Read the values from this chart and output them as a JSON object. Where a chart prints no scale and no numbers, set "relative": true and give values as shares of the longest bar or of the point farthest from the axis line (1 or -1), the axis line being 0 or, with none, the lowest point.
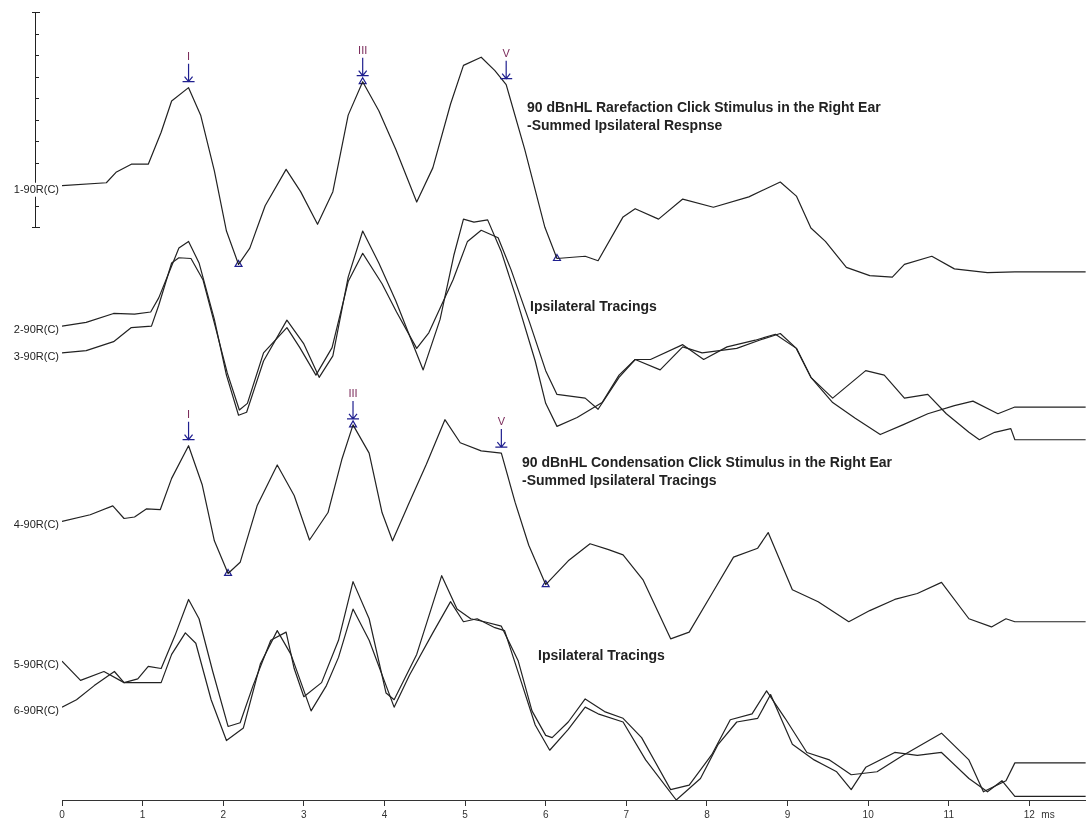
{
  "chart_data": {
    "type": "line",
    "relative": true,
    "xlim": [
      0,
      12.7
    ],
    "xticks": [
      0,
      1,
      2,
      3,
      4,
      5,
      6,
      7,
      8,
      9,
      10,
      11,
      12
    ],
    "xlabel": "ms",
    "tick_labels": "x",
    "grid": false,
    "legend": "left",
    "marker": "none",
    "line_style": "solid",
    "series": [
      {
        "name": "1-90R(C)",
        "color": "#222222",
        "x": [
          0,
          0.55,
          0.67,
          0.86,
          1.07,
          1.23,
          1.36,
          1.57,
          1.72,
          1.89,
          2.04,
          2.19,
          2.33,
          2.52,
          2.78,
          2.96,
          3.17,
          3.36,
          3.55,
          3.73,
          3.93,
          4.14,
          4.4,
          4.6,
          4.82,
          4.98,
          5.2,
          5.37,
          5.51,
          5.74,
          5.99,
          6.14,
          6.49,
          6.65,
          6.96,
          7.11,
          7.4,
          7.7,
          8.08,
          8.52,
          8.91,
          9.11,
          9.29,
          9.47,
          9.73,
          10.02,
          10.3,
          10.45,
          10.79,
          11.07,
          11.48,
          11.82,
          12.7
        ],
        "values": [
          0.827,
          0.831,
          0.845,
          0.856,
          0.856,
          0.899,
          0.941,
          0.959,
          0.922,
          0.847,
          0.766,
          0.721,
          0.743,
          0.8,
          0.849,
          0.819,
          0.775,
          0.819,
          0.922,
          0.967,
          0.928,
          0.876,
          0.805,
          0.851,
          0.937,
          0.989,
          1,
          0.982,
          0.963,
          0.876,
          0.771,
          0.729,
          0.732,
          0.726,
          0.785,
          0.796,
          0.782,
          0.809,
          0.798,
          0.812,
          0.832,
          0.813,
          0.77,
          0.752,
          0.717,
          0.706,
          0.704,
          0.721,
          0.732,
          0.715,
          0.71,
          0.711,
          0.711
        ]
      },
      {
        "name": "2-90R(C)",
        "color": "#222222",
        "x": [
          0,
          0.3,
          0.64,
          0.9,
          1.1,
          1.2,
          1.36,
          1.45,
          1.57,
          1.7,
          1.89,
          2.04,
          2.19,
          2.29,
          2.5,
          2.79,
          3,
          3.19,
          3.36,
          3.55,
          3.73,
          3.93,
          4.14,
          4.48,
          4.69,
          4.86,
          4.98,
          5.11,
          5.28,
          5.45,
          5.62,
          5.87,
          6,
          6.14,
          6.39,
          6.7,
          6.91,
          7.11,
          7.42,
          7.7,
          7.94,
          8.37,
          8.65,
          8.91,
          9.11,
          9.29,
          9.56,
          9.84,
          10.15,
          10.43,
          10.74,
          11.07,
          11.3,
          11.61,
          11.82,
          12.7
        ],
        "values": [
          0.638,
          0.643,
          0.655,
          0.654,
          0.657,
          0.676,
          0.719,
          0.743,
          0.752,
          0.723,
          0.647,
          0.572,
          0.518,
          0.522,
          0.591,
          0.646,
          0.614,
          0.569,
          0.598,
          0.704,
          0.766,
          0.723,
          0.672,
          0.579,
          0.647,
          0.733,
          0.782,
          0.778,
          0.781,
          0.738,
          0.681,
          0.591,
          0.534,
          0.503,
          0.515,
          0.535,
          0.572,
          0.593,
          0.579,
          0.61,
          0.602,
          0.608,
          0.619,
          0.628,
          0.608,
          0.569,
          0.535,
          0.514,
          0.492,
          0.505,
          0.52,
          0.531,
          0.537,
          0.52,
          0.529,
          0.529
        ]
      },
      {
        "name": "3-90R(C)",
        "color": "#222222",
        "x": [
          0,
          0.3,
          0.64,
          0.86,
          1.11,
          1.2,
          1.36,
          1.45,
          1.6,
          1.75,
          1.9,
          2.05,
          2.2,
          2.3,
          2.5,
          2.79,
          2.95,
          3.15,
          3.35,
          3.55,
          3.73,
          3.97,
          4.15,
          4.4,
          4.55,
          4.85,
          5.03,
          5.2,
          5.41,
          5.57,
          5.8,
          6,
          6.14,
          6.49,
          6.65,
          6.91,
          7.11,
          7.3,
          7.7,
          7.96,
          8.25,
          8.6,
          8.85,
          9.11,
          9.29,
          9.56,
          9.97,
          10.2,
          10.45,
          10.74,
          10.97,
          11.25,
          11.38,
          11.57,
          11.77,
          11.82,
          12.7
        ],
        "values": [
          0.602,
          0.605,
          0.617,
          0.636,
          0.638,
          0.666,
          0.723,
          0.73,
          0.729,
          0.7,
          0.638,
          0.575,
          0.525,
          0.534,
          0.602,
          0.636,
          0.609,
          0.572,
          0.609,
          0.698,
          0.736,
          0.695,
          0.657,
          0.608,
          0.629,
          0.7,
          0.752,
          0.767,
          0.757,
          0.714,
          0.643,
          0.578,
          0.546,
          0.541,
          0.526,
          0.569,
          0.593,
          0.593,
          0.613,
          0.593,
          0.61,
          0.619,
          0.627,
          0.608,
          0.569,
          0.541,
          0.578,
          0.572,
          0.541,
          0.546,
          0.52,
          0.495,
          0.485,
          0.495,
          0.5,
          0.485,
          0.485
        ]
      },
      {
        "name": "4-90R(C)",
        "color": "#222222",
        "x": [
          0,
          0.35,
          0.63,
          0.77,
          0.9,
          1.05,
          1.22,
          1.36,
          1.57,
          1.74,
          1.89,
          2.06,
          2.21,
          2.42,
          2.67,
          2.88,
          3.07,
          3.3,
          3.47,
          3.61,
          3.81,
          3.97,
          4.1,
          4.29,
          4.52,
          4.75,
          4.94,
          5.2,
          5.45,
          5.62,
          5.79,
          6,
          6.28,
          6.55,
          6.78,
          6.96,
          7.21,
          7.55,
          7.78,
          8.08,
          8.33,
          8.63,
          8.76,
          9.06,
          9.38,
          9.76,
          10.02,
          10.33,
          10.61,
          10.91,
          11.25,
          11.53,
          11.71,
          11.82,
          12.7
        ],
        "values": [
          0.375,
          0.384,
          0.396,
          0.379,
          0.381,
          0.392,
          0.391,
          0.433,
          0.477,
          0.424,
          0.349,
          0.305,
          0.32,
          0.396,
          0.451,
          0.41,
          0.35,
          0.387,
          0.458,
          0.505,
          0.467,
          0.387,
          0.349,
          0.396,
          0.452,
          0.512,
          0.481,
          0.47,
          0.467,
          0.401,
          0.343,
          0.29,
          0.322,
          0.345,
          0.337,
          0.33,
          0.296,
          0.217,
          0.226,
          0.281,
          0.327,
          0.339,
          0.36,
          0.283,
          0.267,
          0.24,
          0.255,
          0.27,
          0.278,
          0.293,
          0.244,
          0.233,
          0.244,
          0.24,
          0.24
        ]
      },
      {
        "name": "5-90R(C)",
        "color": "#222222",
        "x": [
          0,
          0.23,
          0.52,
          0.77,
          0.94,
          1.07,
          1.23,
          1.4,
          1.57,
          1.7,
          1.87,
          2.06,
          2.21,
          2.37,
          2.59,
          2.78,
          2.88,
          3,
          3.22,
          3.43,
          3.61,
          3.81,
          4.02,
          4.12,
          4.4,
          4.71,
          4.9,
          5.07,
          5.24,
          5.45,
          5.66,
          5.83,
          6,
          6.08,
          6.28,
          6.49,
          6.73,
          6.96,
          7.19,
          7.55,
          7.78,
          8.06,
          8.29,
          8.56,
          8.74,
          8.97,
          9.24,
          9.52,
          9.79,
          10.11,
          10.43,
          10.91,
          11.25,
          11.43,
          11.71,
          11.82,
          12.7
        ],
        "values": [
          0.187,
          0.161,
          0.173,
          0.158,
          0.163,
          0.18,
          0.177,
          0.221,
          0.27,
          0.244,
          0.173,
          0.099,
          0.104,
          0.154,
          0.215,
          0.226,
          0.177,
          0.139,
          0.158,
          0.215,
          0.294,
          0.244,
          0.144,
          0.135,
          0.196,
          0.302,
          0.257,
          0.244,
          0.24,
          0.234,
          0.187,
          0.12,
          0.087,
          0.084,
          0.105,
          0.136,
          0.119,
          0.11,
          0.084,
          0.014,
          0.02,
          0.061,
          0.108,
          0.116,
          0.147,
          0.11,
          0.064,
          0.054,
          0.034,
          0.038,
          0.06,
          0.09,
          0.054,
          0.011,
          0.026,
          0.05,
          0.05
        ]
      },
      {
        "name": "6-90R(C)",
        "color": "#222222",
        "x": [
          0,
          0.18,
          0.4,
          0.65,
          0.77,
          0.94,
          1.23,
          1.36,
          1.53,
          1.66,
          1.85,
          2.04,
          2.25,
          2.46,
          2.67,
          2.84,
          3.09,
          3.28,
          3.43,
          3.61,
          3.81,
          4.12,
          4.31,
          4.6,
          4.82,
          4.98,
          5.15,
          5.37,
          5.49,
          5.7,
          5.87,
          6.05,
          6.28,
          6.49,
          6.65,
          6.96,
          7.24,
          7.62,
          7.92,
          8.14,
          8.37,
          8.63,
          8.79,
          9.06,
          9.33,
          9.61,
          9.79,
          9.97,
          10.33,
          10.61,
          10.91,
          11.25,
          11.48,
          11.66,
          11.82,
          12.7
        ],
        "values": [
          0.125,
          0.135,
          0.154,
          0.173,
          0.158,
          0.158,
          0.158,
          0.196,
          0.225,
          0.211,
          0.135,
          0.08,
          0.097,
          0.183,
          0.228,
          0.196,
          0.12,
          0.154,
          0.192,
          0.257,
          0.215,
          0.125,
          0.168,
          0.225,
          0.267,
          0.24,
          0.244,
          0.232,
          0.228,
          0.158,
          0.101,
          0.067,
          0.095,
          0.125,
          0.116,
          0.105,
          0.054,
          0,
          0.029,
          0.075,
          0.105,
          0.11,
          0.142,
          0.075,
          0.054,
          0.038,
          0.014,
          0.044,
          0.064,
          0.06,
          0.064,
          0.029,
          0.011,
          0.026,
          0.005,
          0.005
        ]
      },
      {
        "type": "scatter",
        "marker": "triangle",
        "color": "#1f1f8f",
        "x": [
          2.19,
          3.73,
          6.14,
          2.06,
          3.61,
          6
        ],
        "values": [
          0.721,
          0.967,
          0.729,
          0.305,
          0.505,
          0.29
        ]
      }
    ],
    "annotations": [
      {
        "text": "I",
        "x": 1.57,
        "y": 0.959
      },
      {
        "text": "III",
        "x": 3.73,
        "y": 0.967
      },
      {
        "text": "V",
        "x": 5.51,
        "y": 0.963
      },
      {
        "text": "I",
        "x": 1.57,
        "y": 0.477
      },
      {
        "text": "III",
        "x": 3.61,
        "y": 0.505
      },
      {
        "text": "V",
        "x": 5.45,
        "y": 0.467
      },
      "90 dBnHL Rarefaction Click Stimulus in the Right Ear\n-Summed Ipsilateral Respnse",
      "Ipsilateral Tracings",
      "90 dBnHL Condensation Click Stimulus in the Right Ear\n-Summed Ipsilateral Tracings",
      "Ipsilateral Tracings"
    ]
  }
}
